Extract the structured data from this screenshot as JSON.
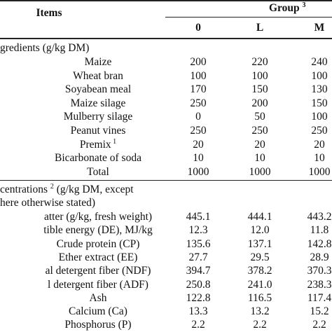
{
  "header": {
    "items": "Items",
    "group": "Group",
    "group_note": "3",
    "col0": "0",
    "colL": "L",
    "colM": "M"
  },
  "ingredients": {
    "heading": "gredients (g/kg DM)",
    "rows": [
      {
        "label": "Maize",
        "note": "",
        "v0": "200",
        "vL": "220",
        "vM": "240"
      },
      {
        "label": "Wheat bran",
        "note": "",
        "v0": "100",
        "vL": "100",
        "vM": "100"
      },
      {
        "label": "Soyabean meal",
        "note": "",
        "v0": "170",
        "vL": "150",
        "vM": "130"
      },
      {
        "label": "Maize silage",
        "note": "",
        "v0": "250",
        "vL": "200",
        "vM": "150"
      },
      {
        "label": "Mulberry silage",
        "note": "",
        "v0": "0",
        "vL": "50",
        "vM": "100"
      },
      {
        "label": "Peanut vines",
        "note": "",
        "v0": "250",
        "vL": "250",
        "vM": "250"
      },
      {
        "label": "Premix",
        "note": "1",
        "v0": "20",
        "vL": "20",
        "vM": "20"
      },
      {
        "label": "Bicarbonate of soda",
        "note": "",
        "v0": "10",
        "vL": "10",
        "vM": "10"
      },
      {
        "label": "Total",
        "note": "",
        "v0": "1000",
        "vL": "1000",
        "vM": "1000"
      }
    ]
  },
  "nutrients": {
    "heading_line1": "centrations",
    "heading_note": "2",
    "heading_line1_rest": "(g/kg DM, except",
    "heading_line2": "here otherwise stated)",
    "rows": [
      {
        "label": "atter (g/kg, fresh weight)",
        "v0": "445.1",
        "vL": "444.1",
        "vM": "443.2"
      },
      {
        "label": "tible energy (DE), MJ/kg",
        "v0": "12.3",
        "vL": "12.0",
        "vM": "11.8"
      },
      {
        "label": "Crude protein (CP)",
        "v0": "135.6",
        "vL": "137.1",
        "vM": "142.8"
      },
      {
        "label": "Ether extract (EE)",
        "v0": "27.7",
        "vL": "29.5",
        "vM": "28.9"
      },
      {
        "label": "al detergent fiber (NDF)",
        "v0": "394.7",
        "vL": "378.2",
        "vM": "370.3"
      },
      {
        "label": "l detergent fiber (ADF)",
        "v0": "250.8",
        "vL": "241.0",
        "vM": "238.3"
      },
      {
        "label": "Ash",
        "v0": "122.8",
        "vL": "116.5",
        "vM": "117.4"
      },
      {
        "label": "Calcium (Ca)",
        "v0": "13.3",
        "vL": "13.2",
        "vM": "15.2"
      },
      {
        "label": "Phosphorus (P)",
        "v0": "2.2",
        "vL": "2.2",
        "vM": "2.2"
      }
    ]
  }
}
